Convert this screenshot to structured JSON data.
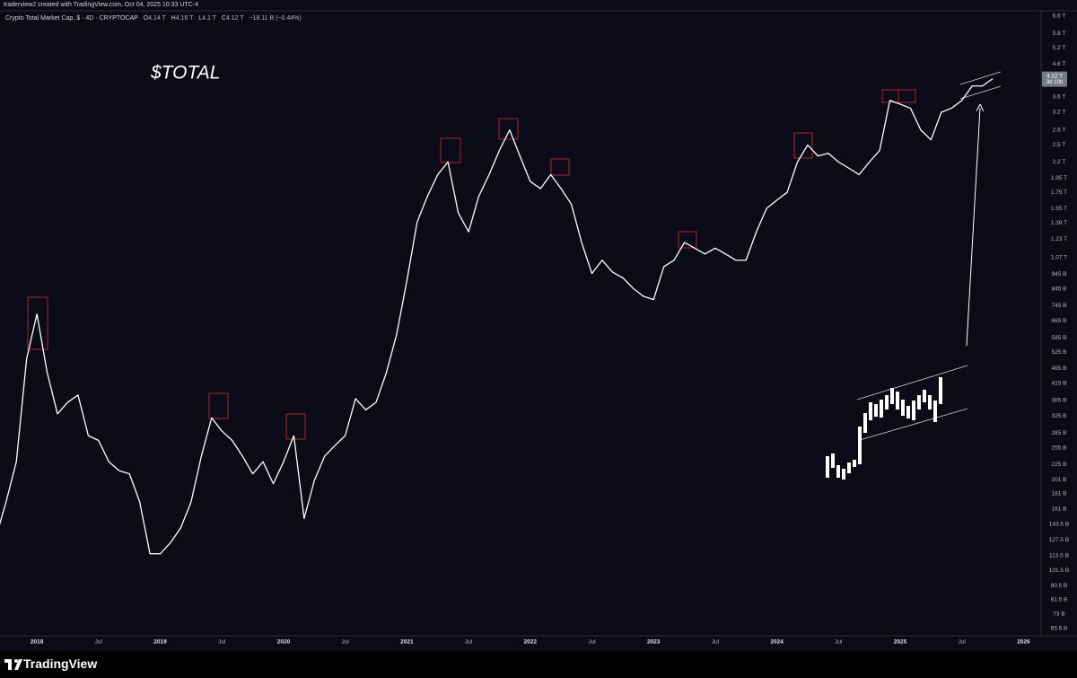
{
  "header": {
    "credit": "traderview2 created with TradingView.com, Oct 04, 2025 10:33 UTC-4"
  },
  "legend": {
    "symbol": "Crypto Total Market Cap, $ · 4D · CRYPTOCAP",
    "open_label": "O",
    "open": "4.14 T",
    "high_label": "H",
    "high": "4.16 T",
    "low_label": "L",
    "low": "4.1 T",
    "close_label": "C",
    "close": "4.12 T",
    "change": "−18.11 B (−0.44%)"
  },
  "chart_data": {
    "type": "line",
    "annotation": "$TOTAL",
    "log_scale": true,
    "grid": false,
    "x": [
      "2017-09",
      "2017-10",
      "2017-11",
      "2017-12",
      "2018-01",
      "2018-02",
      "2018-03",
      "2018-04",
      "2018-05",
      "2018-06",
      "2018-07",
      "2018-08",
      "2018-09",
      "2018-10",
      "2018-11",
      "2018-12",
      "2019-01",
      "2019-02",
      "2019-03",
      "2019-04",
      "2019-05",
      "2019-06",
      "2019-07",
      "2019-08",
      "2019-09",
      "2019-10",
      "2019-11",
      "2019-12",
      "2020-01",
      "2020-02",
      "2020-03",
      "2020-04",
      "2020-05",
      "2020-06",
      "2020-07",
      "2020-08",
      "2020-09",
      "2020-10",
      "2020-11",
      "2020-12",
      "2021-01",
      "2021-02",
      "2021-03",
      "2021-04",
      "2021-05",
      "2021-06",
      "2021-07",
      "2021-08",
      "2021-09",
      "2021-10",
      "2021-11",
      "2021-12",
      "2022-01",
      "2022-02",
      "2022-03",
      "2022-04",
      "2022-05",
      "2022-06",
      "2022-07",
      "2022-08",
      "2022-09",
      "2022-10",
      "2022-11",
      "2022-12",
      "2023-01",
      "2023-02",
      "2023-03",
      "2023-04",
      "2023-05",
      "2023-06",
      "2023-07",
      "2023-08",
      "2023-09",
      "2023-10",
      "2023-11",
      "2023-12",
      "2024-01",
      "2024-02",
      "2024-03",
      "2024-04",
      "2024-05",
      "2024-06",
      "2024-07",
      "2024-08",
      "2024-09",
      "2024-10",
      "2024-11",
      "2024-12",
      "2025-01",
      "2025-02",
      "2025-03",
      "2025-04",
      "2025-05",
      "2025-06",
      "2025-07",
      "2025-08",
      "2025-09",
      "2025-10"
    ],
    "series": [
      {
        "name": "Crypto Total Market Cap",
        "color": "#ffffff",
        "values": [
          130000000000,
          170000000000,
          230000000000,
          500000000000,
          700000000000,
          450000000000,
          330000000000,
          360000000000,
          380000000000,
          280000000000,
          270000000000,
          230000000000,
          215000000000,
          210000000000,
          170000000000,
          115000000000,
          115000000000,
          125000000000,
          140000000000,
          170000000000,
          240000000000,
          320000000000,
          290000000000,
          270000000000,
          240000000000,
          210000000000,
          230000000000,
          195000000000,
          230000000000,
          280000000000,
          150000000000,
          200000000000,
          240000000000,
          260000000000,
          280000000000,
          370000000000,
          340000000000,
          360000000000,
          450000000000,
          600000000000,
          900000000000,
          1400000000000,
          1700000000000,
          2000000000000,
          2200000000000,
          1500000000000,
          1300000000000,
          1700000000000,
          2000000000000,
          2400000000000,
          2800000000000,
          2300000000000,
          1900000000000,
          1800000000000,
          2000000000000,
          1800000000000,
          1600000000000,
          1200000000000,
          950000000000,
          1050000000000,
          960000000000,
          920000000000,
          850000000000,
          800000000000,
          780000000000,
          1000000000000,
          1050000000000,
          1200000000000,
          1150000000000,
          1100000000000,
          1150000000000,
          1100000000000,
          1050000000000,
          1050000000000,
          1300000000000,
          1550000000000,
          1650000000000,
          1750000000000,
          2200000000000,
          2500000000000,
          2300000000000,
          2350000000000,
          2200000000000,
          2100000000000,
          2000000000000,
          2200000000000,
          2400000000000,
          3500000000000,
          3400000000000,
          3300000000000,
          2800000000000,
          2600000000000,
          3200000000000,
          3300000000000,
          3500000000000,
          3900000000000,
          3900000000000,
          4120000000000
        ]
      }
    ],
    "last_price": {
      "value": 4120000000000,
      "label": "4.12 T",
      "countdown": "3d 10h"
    },
    "xlim": [
      "2017-09",
      "2026-03"
    ],
    "xticks": [
      "2018",
      {
        "value": "2018-07",
        "label": "Jul"
      },
      "2019",
      {
        "value": "2019-07",
        "label": "Jul"
      },
      "2020",
      {
        "value": "2020-07",
        "label": "Jul"
      },
      "2021",
      {
        "value": "2021-07",
        "label": "Jul"
      },
      "2022",
      {
        "value": "2022-07",
        "label": "Jul"
      },
      "2023",
      {
        "value": "2023-07",
        "label": "Jul"
      },
      "2024",
      {
        "value": "2024-07",
        "label": "Jul"
      },
      "2025",
      {
        "value": "2025-07",
        "label": "Jul"
      },
      "2026"
    ],
    "ylim": [
      62000000000,
      7060000000000
    ],
    "yticks": [
      {
        "value": 6600000000000,
        "label": "6.6 T"
      },
      {
        "value": 5800000000000,
        "label": "5.8 T"
      },
      {
        "value": 5200000000000,
        "label": "5.2 T"
      },
      {
        "value": 4600000000000,
        "label": "4.6 T"
      },
      {
        "value": 3600000000000,
        "label": "3.6 T"
      },
      {
        "value": 3200000000000,
        "label": "3.2 T"
      },
      {
        "value": 2800000000000,
        "label": "2.8 T"
      },
      {
        "value": 2500000000000,
        "label": "2.5 T"
      },
      {
        "value": 2200000000000,
        "label": "2.2 T"
      },
      {
        "value": 1950000000000,
        "label": "1.95 T"
      },
      {
        "value": 1750000000000,
        "label": "1.75 T"
      },
      {
        "value": 1550000000000,
        "label": "1.55 T"
      },
      {
        "value": 1390000000000,
        "label": "1.39 T"
      },
      {
        "value": 1230000000000,
        "label": "1.23 T"
      },
      {
        "value": 1070000000000,
        "label": "1.07 T"
      },
      {
        "value": 945000000000,
        "label": "945 B"
      },
      {
        "value": 845000000000,
        "label": "845 B"
      },
      {
        "value": 745000000000,
        "label": "745 B"
      },
      {
        "value": 665000000000,
        "label": "665 B"
      },
      {
        "value": 585000000000,
        "label": "585 B"
      },
      {
        "value": 525000000000,
        "label": "525 B"
      },
      {
        "value": 465000000000,
        "label": "465 B"
      },
      {
        "value": 415000000000,
        "label": "415 B"
      },
      {
        "value": 365000000000,
        "label": "365 B"
      },
      {
        "value": 325000000000,
        "label": "325 B"
      },
      {
        "value": 285000000000,
        "label": "285 B"
      },
      {
        "value": 255000000000,
        "label": "255 B"
      },
      {
        "value": 225000000000,
        "label": "225 B"
      },
      {
        "value": 201000000000,
        "label": "201 B"
      },
      {
        "value": 181000000000,
        "label": "181 B"
      },
      {
        "value": 161000000000,
        "label": "161 B"
      },
      {
        "value": 143500000000,
        "label": "143.5 B"
      },
      {
        "value": 127500000000,
        "label": "127.5 B"
      },
      {
        "value": 113500000000,
        "label": "113.5 B"
      },
      {
        "value": 101500000000,
        "label": "101.5 B"
      },
      {
        "value": 90500000000,
        "label": "90.5 B"
      },
      {
        "value": 81500000000,
        "label": "81.5 B"
      },
      {
        "value": 73000000000,
        "label": "73 B"
      },
      {
        "value": 65500000000,
        "label": "65.5 B"
      }
    ]
  },
  "footer": {
    "brand": "TradingView"
  }
}
